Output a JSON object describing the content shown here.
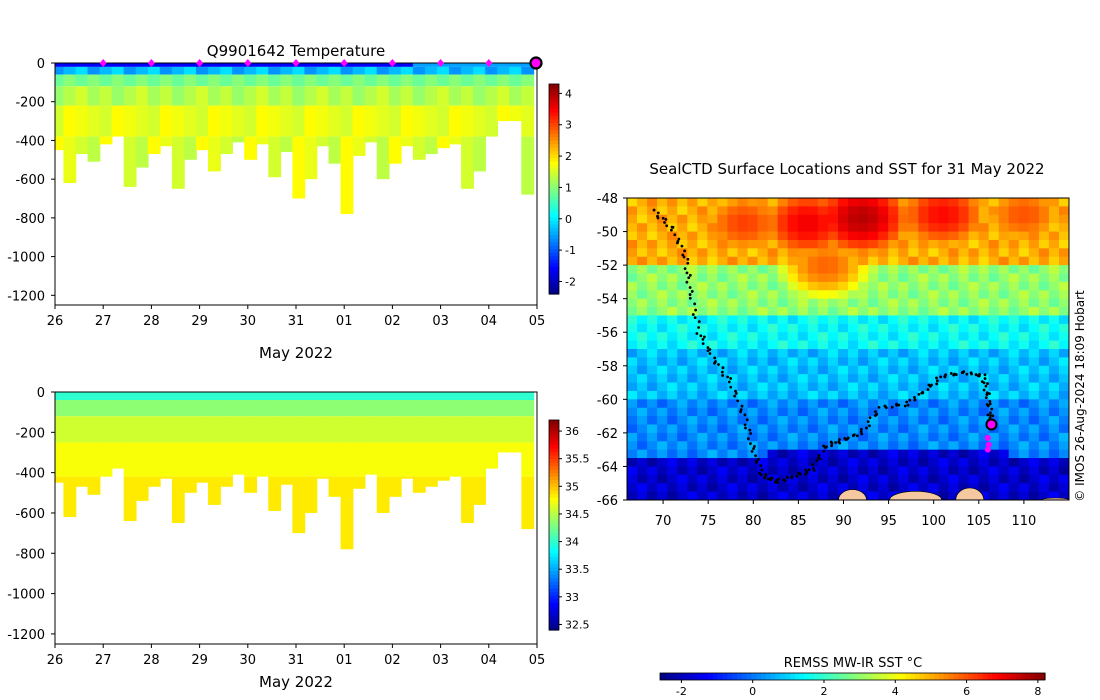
{
  "figure": {
    "credit": "© IMOS 26-Aug-2024 18:09 Hobart"
  },
  "chart_data": [
    {
      "id": "temperature",
      "type": "heatmap",
      "title": "Q9901642  Temperature",
      "xlabel": "May 2022",
      "ylabel": "",
      "x_ticks": [
        "26",
        "27",
        "28",
        "29",
        "30",
        "31",
        "01",
        "02",
        "03",
        "04",
        "05"
      ],
      "ylim": [
        -1250,
        0
      ],
      "y_ticks": [
        0,
        -200,
        -400,
        -600,
        -800,
        -1000,
        -1200
      ],
      "colorbar": {
        "min": -2.4,
        "max": 4.3,
        "ticks": [
          -2,
          -1,
          0,
          1,
          2,
          3,
          4
        ]
      },
      "profile_markers_day": [
        27,
        28,
        29,
        30,
        31,
        32,
        33,
        34,
        35
      ],
      "latest_marker_day": 36,
      "layer_values": [
        -1.6,
        -0.6,
        0.8,
        1.1,
        1.5,
        1.8
      ],
      "profiles": [
        {
          "day": 26.05,
          "depth": 450
        },
        {
          "day": 26.3,
          "depth": 620
        },
        {
          "day": 26.55,
          "depth": 470
        },
        {
          "day": 26.8,
          "depth": 510
        },
        {
          "day": 27.05,
          "depth": 420
        },
        {
          "day": 27.3,
          "depth": 380
        },
        {
          "day": 27.55,
          "depth": 640
        },
        {
          "day": 27.8,
          "depth": 540
        },
        {
          "day": 28.05,
          "depth": 470
        },
        {
          "day": 28.3,
          "depth": 430
        },
        {
          "day": 28.55,
          "depth": 650
        },
        {
          "day": 28.8,
          "depth": 500
        },
        {
          "day": 29.05,
          "depth": 450
        },
        {
          "day": 29.3,
          "depth": 560
        },
        {
          "day": 29.55,
          "depth": 470
        },
        {
          "day": 29.8,
          "depth": 410
        },
        {
          "day": 30.05,
          "depth": 500
        },
        {
          "day": 30.3,
          "depth": 420
        },
        {
          "day": 30.55,
          "depth": 590
        },
        {
          "day": 30.8,
          "depth": 460
        },
        {
          "day": 31.05,
          "depth": 700
        },
        {
          "day": 31.3,
          "depth": 600
        },
        {
          "day": 31.55,
          "depth": 430
        },
        {
          "day": 31.8,
          "depth": 520
        },
        {
          "day": 32.05,
          "depth": 780
        },
        {
          "day": 32.3,
          "depth": 480
        },
        {
          "day": 32.55,
          "depth": 410
        },
        {
          "day": 32.8,
          "depth": 600
        },
        {
          "day": 33.05,
          "depth": 520
        },
        {
          "day": 33.3,
          "depth": 430
        },
        {
          "day": 33.55,
          "depth": 500
        },
        {
          "day": 33.8,
          "depth": 470
        },
        {
          "day": 34.05,
          "depth": 440
        },
        {
          "day": 34.3,
          "depth": 420
        },
        {
          "day": 34.55,
          "depth": 650
        },
        {
          "day": 34.8,
          "depth": 560
        },
        {
          "day": 35.05,
          "depth": 380
        },
        {
          "day": 35.3,
          "depth": 300
        },
        {
          "day": 35.55,
          "depth": 300
        },
        {
          "day": 35.8,
          "depth": 680
        }
      ]
    },
    {
      "id": "salinity",
      "type": "heatmap",
      "title": "",
      "xlabel": "May 2022",
      "ylabel": "",
      "x_ticks": [
        "26",
        "27",
        "28",
        "29",
        "30",
        "31",
        "01",
        "02",
        "03",
        "04",
        "05"
      ],
      "ylim": [
        -1250,
        0
      ],
      "y_ticks": [
        0,
        -200,
        -400,
        -600,
        -800,
        -1000,
        -1200
      ],
      "colorbar": {
        "min": 32.4,
        "max": 36.2,
        "ticks": [
          32.5,
          33,
          33.5,
          34,
          34.5,
          35,
          35.5,
          36
        ]
      },
      "layer_values": [
        34.0,
        34.35,
        34.6,
        34.75,
        34.85
      ]
    },
    {
      "id": "sst_map",
      "type": "heatmap",
      "title": "SealCTD Surface Locations and SST for 31 May 2022",
      "xlabel": "",
      "ylabel": "",
      "xlim": [
        66,
        115
      ],
      "ylim": [
        -66,
        -48
      ],
      "x_ticks": [
        70,
        75,
        80,
        85,
        90,
        95,
        100,
        105,
        110
      ],
      "y_ticks": [
        -48,
        -50,
        -52,
        -54,
        -56,
        -58,
        -60,
        -62,
        -64,
        -66
      ],
      "colorbar": {
        "label": "REMSS MW-IR SST °C",
        "min": -2.6,
        "max": 8.2,
        "ticks": [
          -2,
          0,
          2,
          4,
          6,
          8
        ]
      },
      "zones": [
        {
          "lat_from": -48,
          "lat_to": -52,
          "sst": 5.0
        },
        {
          "lat_from": -52,
          "lat_to": -55,
          "sst": 3.0
        },
        {
          "lat_from": -55,
          "lat_to": -57,
          "sst": 1.5
        },
        {
          "lat_from": -57,
          "lat_to": -60,
          "sst": 0.8
        },
        {
          "lat_from": -60,
          "lat_to": -63,
          "sst": 0.2
        },
        {
          "lat_from": -63,
          "lat_to": -66,
          "sst": -1.8
        }
      ],
      "warm_patches": [
        {
          "lon": 92,
          "lat": -49.2,
          "sst": 7.6
        },
        {
          "lon": 86,
          "lat": -49.5,
          "sst": 7.0
        },
        {
          "lon": 101,
          "lat": -49.0,
          "sst": 6.8
        },
        {
          "lon": 79,
          "lat": -49.5,
          "sst": 6.2
        },
        {
          "lon": 88,
          "lat": -52.0,
          "sst": 5.8
        },
        {
          "lon": 110,
          "lat": -49.0,
          "sst": 6.0
        }
      ],
      "track": [
        {
          "lon": 69.0,
          "lat": -48.8
        },
        {
          "lon": 71.0,
          "lat": -49.8
        },
        {
          "lon": 72.5,
          "lat": -51.5
        },
        {
          "lon": 73.0,
          "lat": -53.5
        },
        {
          "lon": 74.0,
          "lat": -56.0
        },
        {
          "lon": 75.5,
          "lat": -57.5
        },
        {
          "lon": 77.5,
          "lat": -59.0
        },
        {
          "lon": 79.0,
          "lat": -61.0
        },
        {
          "lon": 80.0,
          "lat": -63.0
        },
        {
          "lon": 81.0,
          "lat": -64.5
        },
        {
          "lon": 82.5,
          "lat": -64.9
        },
        {
          "lon": 84.5,
          "lat": -64.6
        },
        {
          "lon": 86.5,
          "lat": -64.2
        },
        {
          "lon": 88.0,
          "lat": -62.8
        },
        {
          "lon": 90.0,
          "lat": -62.4
        },
        {
          "lon": 92.0,
          "lat": -62.0
        },
        {
          "lon": 94.0,
          "lat": -60.5
        },
        {
          "lon": 97.0,
          "lat": -60.3
        },
        {
          "lon": 99.0,
          "lat": -59.5
        },
        {
          "lon": 101.0,
          "lat": -58.6
        },
        {
          "lon": 103.5,
          "lat": -58.4
        },
        {
          "lon": 105.5,
          "lat": -58.6
        },
        {
          "lon": 106.0,
          "lat": -59.8
        },
        {
          "lon": 106.3,
          "lat": -61.0
        },
        {
          "lon": 106.4,
          "lat": -61.5
        }
      ],
      "recent_points": [
        {
          "lon": 106.0,
          "lat": -62.3
        },
        {
          "lon": 106.1,
          "lat": -62.7
        },
        {
          "lon": 106.0,
          "lat": -63.0
        }
      ],
      "current_position": {
        "lon": 106.4,
        "lat": -61.5
      },
      "land": [
        {
          "lon": 91.0,
          "lat": -65.5
        },
        {
          "lon": 98.0,
          "lat": -65.6
        },
        {
          "lon": 104.0,
          "lat": -65.4
        },
        {
          "lon": 113.5,
          "lat": -66.0
        }
      ]
    }
  ]
}
